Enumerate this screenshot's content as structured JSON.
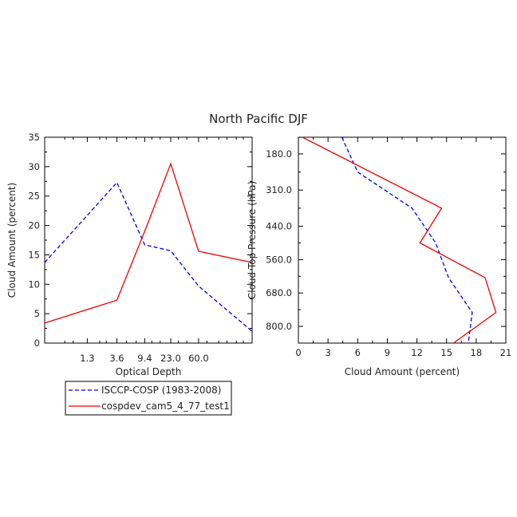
{
  "title": "North Pacific DJF",
  "colors": {
    "obs": "#0000ee",
    "model": "#ee0000",
    "axis": "#000000"
  },
  "legend": {
    "entries": [
      {
        "label": "ISCCP-COSP (1983-2008)",
        "color": "#0000ee",
        "dash": "dashed"
      },
      {
        "label": "cospdev_cam5_4_77_test1",
        "color": "#ee0000",
        "dash": "solid"
      }
    ]
  },
  "chart_data": [
    {
      "type": "line",
      "xlabel": "Optical Depth",
      "ylabel": "Cloud Amount (percent)",
      "categories": [
        "1.3",
        "3.6",
        "9.4",
        "23.0",
        "60.0"
      ],
      "yticks": [
        0,
        5,
        10,
        15,
        20,
        25,
        30,
        35
      ],
      "ylim": [
        0,
        35
      ],
      "grid": false,
      "series": [
        {
          "name": "ISCCP-COSP (1983-2008)",
          "x": [
            0.3,
            3.6,
            9.4,
            23.0,
            60.0,
            379
          ],
          "values": [
            13.7,
            27.3,
            16.7,
            15.7,
            9.7,
            2.0
          ]
        },
        {
          "name": "cospdev_cam5_4_77_test1",
          "x": [
            0.3,
            3.6,
            9.4,
            23.0,
            60.0,
            379
          ],
          "values": [
            3.4,
            7.3,
            19.0,
            30.5,
            15.6,
            13.7
          ]
        }
      ]
    },
    {
      "type": "line",
      "xlabel": "Cloud Amount (percent)",
      "ylabel": "Cloud Top Pressure (hPa)",
      "xticks": [
        0,
        3,
        6,
        9,
        12,
        15,
        18,
        21
      ],
      "xlim": [
        0,
        21
      ],
      "yticks": [
        "180.0",
        "310.0",
        "440.0",
        "560.0",
        "680.0",
        "800.0"
      ],
      "ylim": [
        120,
        860
      ],
      "y_reversed": true,
      "grid": false,
      "series": [
        {
          "name": "ISCCP-COSP (1983-2008)",
          "x": [
            4.4,
            6.0,
            11.5,
            13.9,
            15.2,
            17.6,
            17.2
          ],
          "y": [
            120,
            245,
            375,
            500,
            625,
            750,
            860
          ]
        },
        {
          "name": "cospdev_cam5_4_77_test1",
          "x": [
            0.4,
            14.5,
            12.3,
            18.9,
            20.0,
            15.7
          ],
          "y": [
            120,
            375,
            500,
            625,
            750,
            860
          ]
        }
      ]
    }
  ]
}
